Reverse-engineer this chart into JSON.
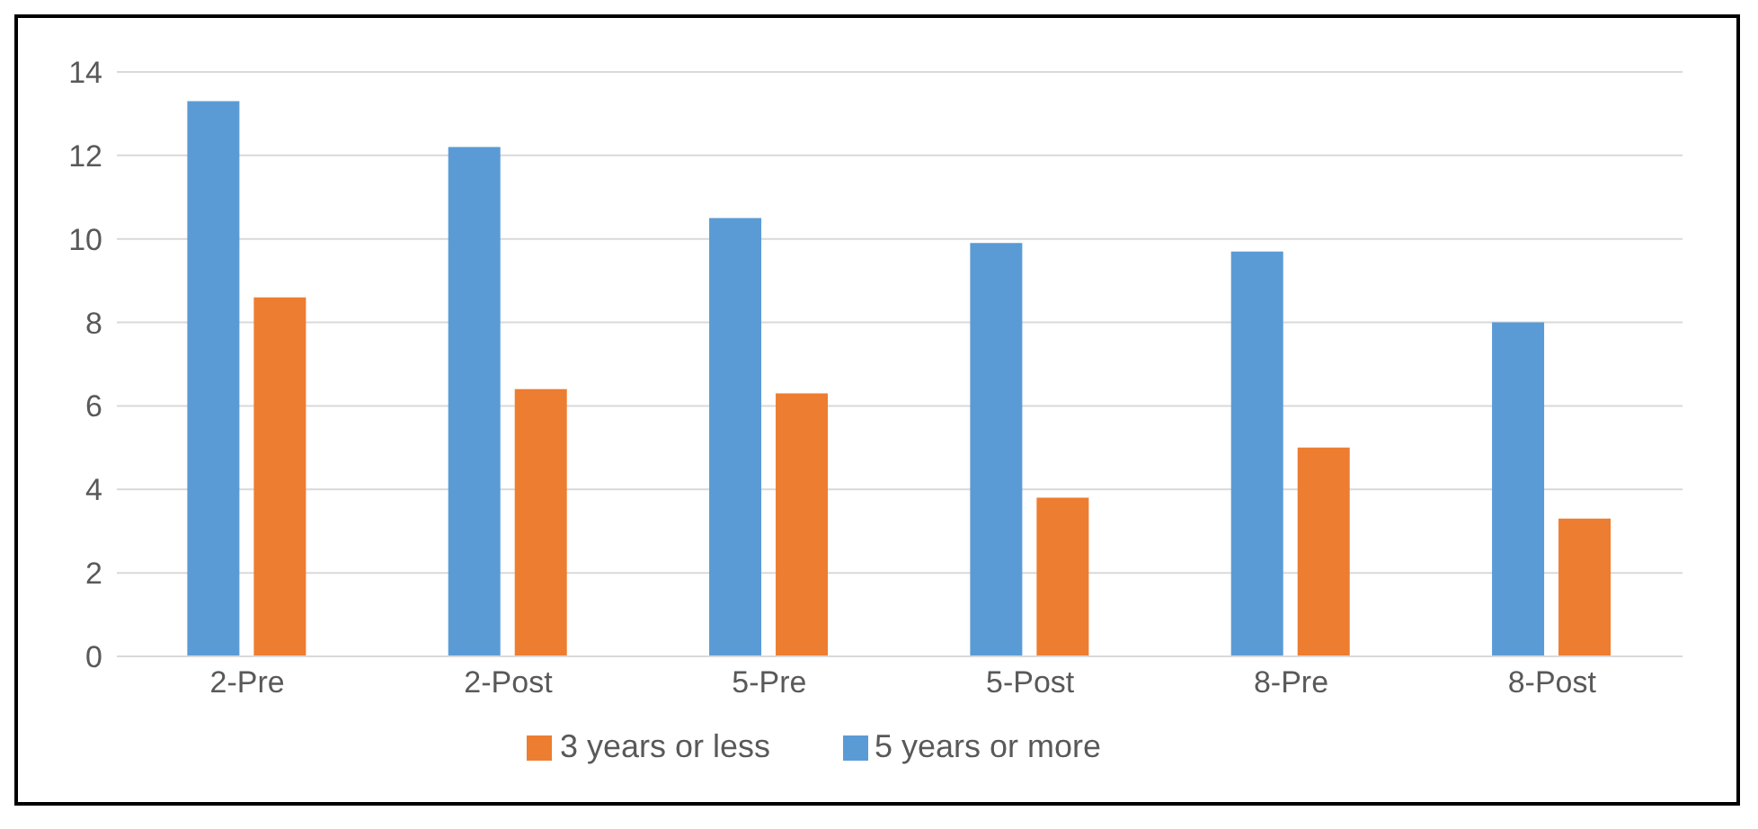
{
  "chart_data": {
    "type": "bar",
    "categories": [
      "2-Pre",
      "2-Post",
      "5-Pre",
      "5-Post",
      "8-Pre",
      "8-Post"
    ],
    "series": [
      {
        "name": "5 years or more",
        "color": "#5b9bd5",
        "values": [
          13.3,
          12.2,
          10.5,
          9.9,
          9.7,
          8.0
        ]
      },
      {
        "name": "3 years or less",
        "color": "#ed7d31",
        "values": [
          8.6,
          6.4,
          6.3,
          3.8,
          5.0,
          3.3
        ]
      }
    ],
    "ylim": [
      0,
      14
    ],
    "yticks": [
      0,
      2,
      4,
      6,
      8,
      10,
      12,
      14
    ],
    "grid": "y",
    "legend": "bottom"
  }
}
